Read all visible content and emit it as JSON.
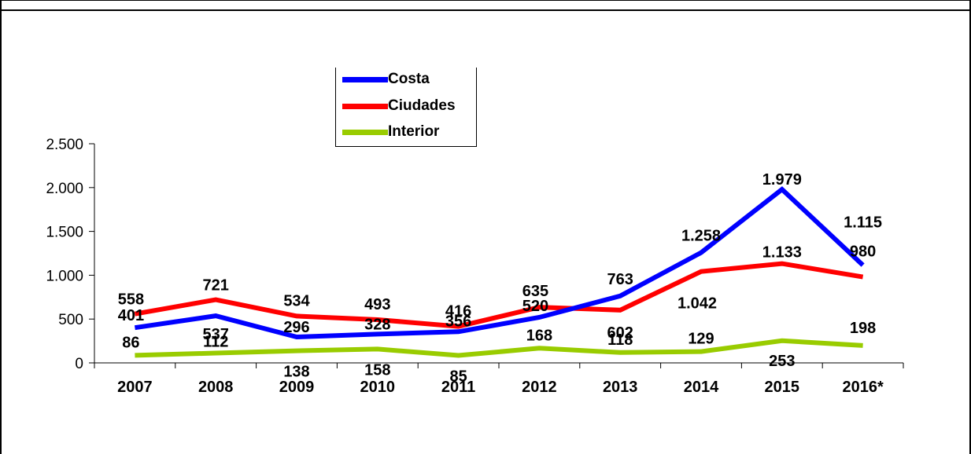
{
  "chart_data": {
    "type": "line",
    "categories": [
      "2007",
      "2008",
      "2009",
      "2010",
      "2011",
      "2012",
      "2013",
      "2014",
      "2015",
      "2016*"
    ],
    "ylim": [
      0,
      2500
    ],
    "yticks": [
      {
        "value": 0,
        "label": "0"
      },
      {
        "value": 500,
        "label": "500"
      },
      {
        "value": 1000,
        "label": "1.000"
      },
      {
        "value": 1500,
        "label": "1.500"
      },
      {
        "value": 2000,
        "label": "2.000"
      },
      {
        "value": 2500,
        "label": "2.500"
      }
    ],
    "grid": false,
    "legend_position": "top-center",
    "series": [
      {
        "name": "Costa",
        "color": "#0000ff",
        "values": [
          401,
          537,
          296,
          328,
          356,
          520,
          763,
          1258,
          1979,
          1115
        ],
        "labels": [
          "401",
          "537",
          "296",
          "328",
          "356",
          "520",
          "763",
          "1.258",
          "1.979",
          "1.115"
        ]
      },
      {
        "name": "Ciudades",
        "color": "#ff0000",
        "values": [
          558,
          721,
          534,
          493,
          416,
          635,
          602,
          1042,
          1133,
          980
        ],
        "labels": [
          "558",
          "721",
          "534",
          "493",
          "416",
          "635",
          "602",
          "1.042",
          "1.133",
          "980"
        ]
      },
      {
        "name": "Interior",
        "color": "#99cc00",
        "values": [
          86,
          112,
          138,
          158,
          85,
          168,
          118,
          129,
          253,
          198
        ],
        "labels": [
          "86",
          "112",
          "138",
          "158",
          "85",
          "168",
          "118",
          "129",
          "253",
          "198"
        ]
      }
    ]
  }
}
